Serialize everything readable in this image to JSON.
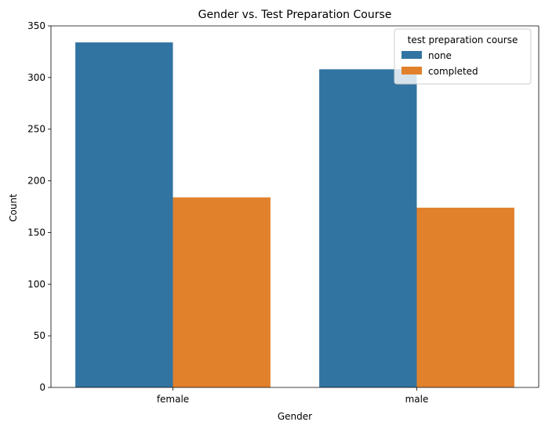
{
  "chart_data": {
    "type": "bar",
    "title": "Gender vs. Test Preparation Course",
    "xlabel": "Gender",
    "ylabel": "Count",
    "categories": [
      "female",
      "male"
    ],
    "series": [
      {
        "name": "none",
        "values": [
          334,
          308
        ]
      },
      {
        "name": "completed",
        "values": [
          184,
          174
        ]
      }
    ],
    "ylim": [
      0,
      350
    ],
    "yticks": [
      "0",
      "50",
      "100",
      "150",
      "200",
      "250",
      "300",
      "350"
    ],
    "grid": false,
    "legend": {
      "title": "test preparation course",
      "position": "top-right"
    },
    "colors": {
      "none": "#3274a1",
      "completed": "#e1812c"
    }
  }
}
